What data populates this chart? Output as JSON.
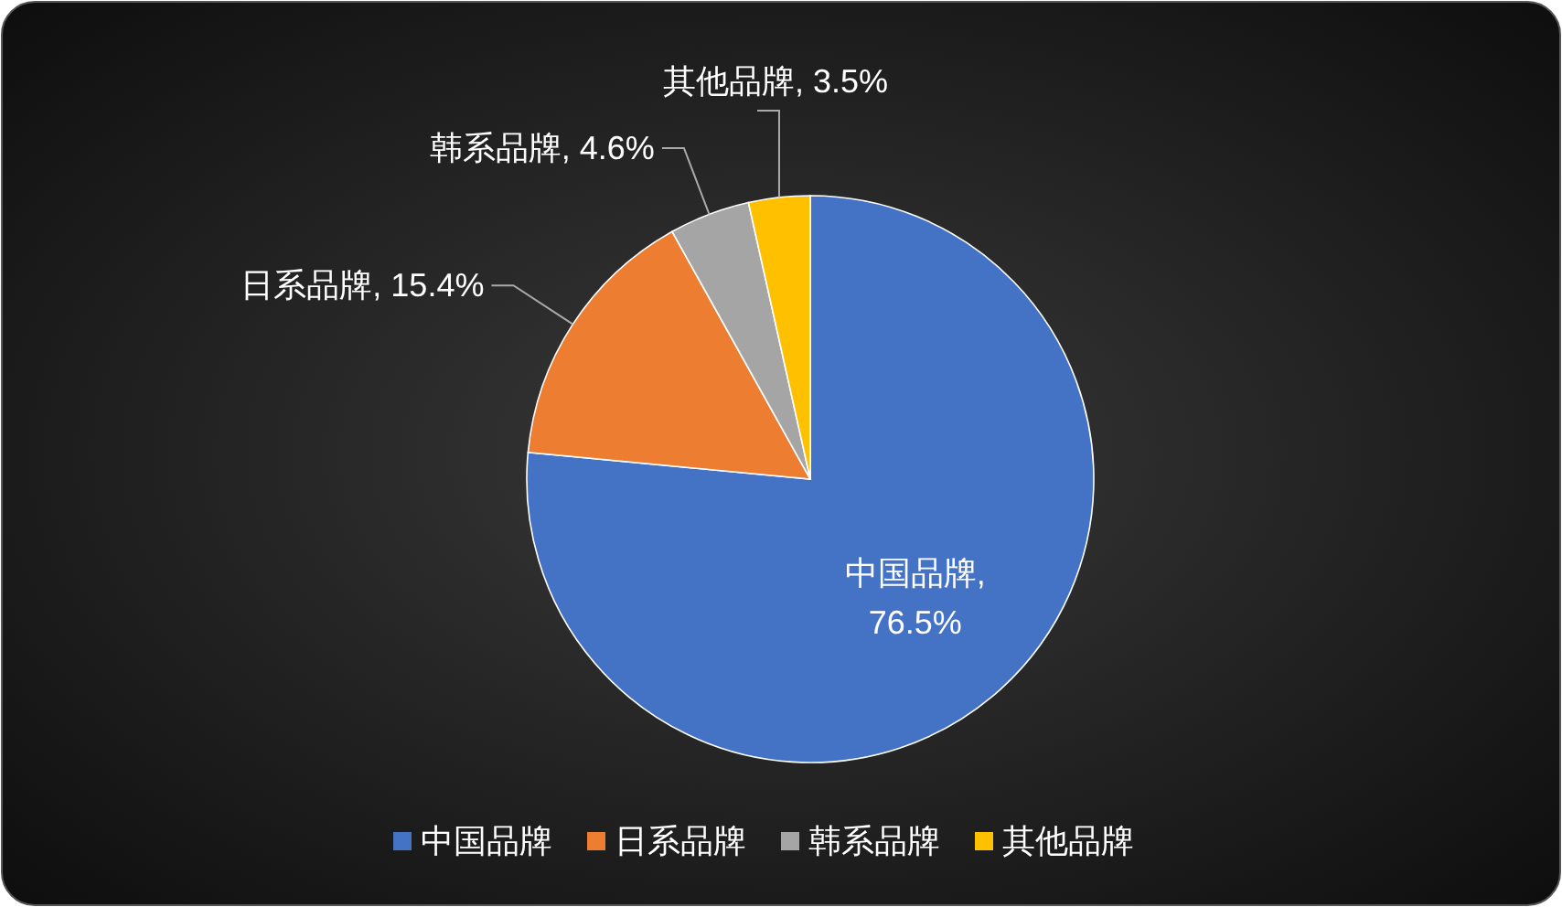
{
  "chart_data": {
    "type": "pie",
    "categories": [
      "中国品牌",
      "日系品牌",
      "韩系品牌",
      "其他品牌"
    ],
    "values": [
      76.5,
      15.4,
      4.6,
      3.5
    ],
    "colors": [
      "#4472c4",
      "#ed7d31",
      "#a5a5a5",
      "#ffc000"
    ],
    "value_labels": [
      "中国品牌, 76.5%",
      "日系品牌, 15.4%",
      "韩系品牌, 4.6%",
      "其他品牌, 3.5%"
    ],
    "legend": "bottom"
  }
}
